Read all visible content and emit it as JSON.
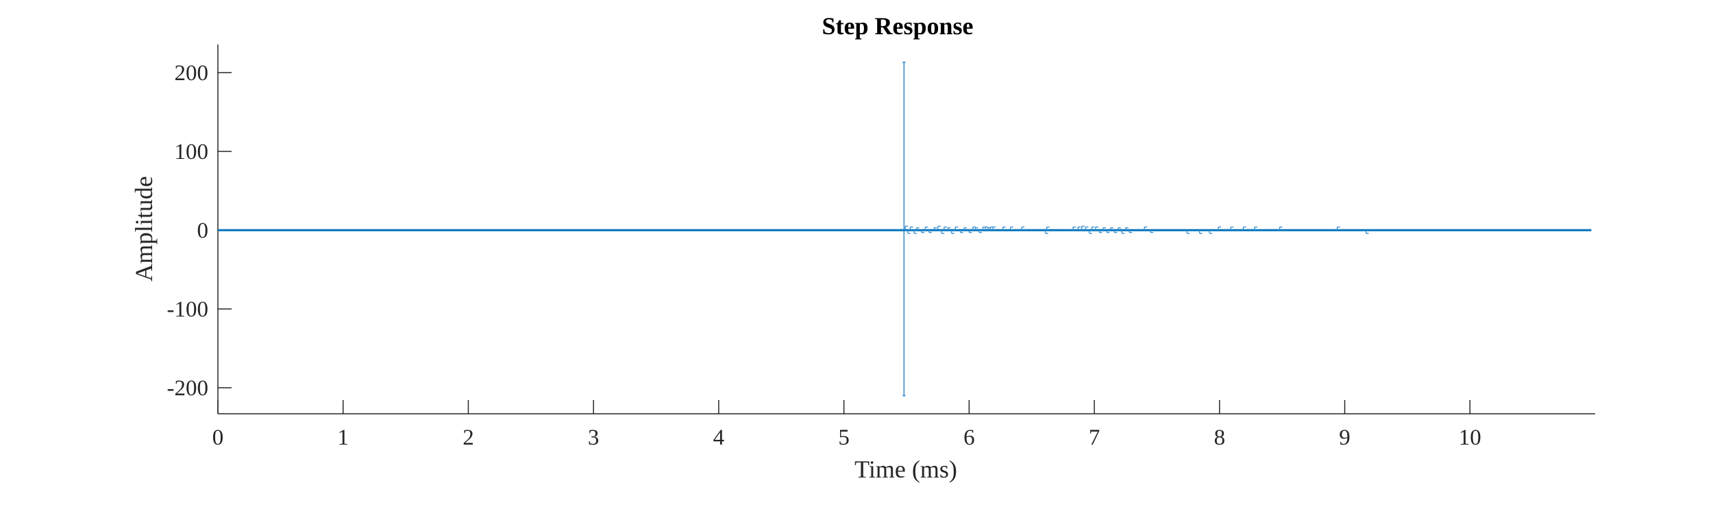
{
  "chart_data": {
    "type": "line",
    "title": "Step Response",
    "xlabel": "Time (ms)",
    "ylabel": "Amplitude",
    "xlim": [
      0,
      11
    ],
    "ylim": [
      -230,
      230
    ],
    "xticks": [
      0,
      1,
      2,
      3,
      4,
      5,
      6,
      7,
      8,
      9,
      10
    ],
    "xtick_labels": [
      "0",
      "1",
      "2",
      "3",
      "4",
      "5",
      "6",
      "7",
      "8",
      "9",
      "10"
    ],
    "yticks": [
      200,
      100,
      0,
      -100,
      -200
    ],
    "ytick_labels": [
      "200",
      "100",
      "0",
      "-100",
      "-200"
    ],
    "grid": false,
    "colors": {
      "zero_line": "#0072BD",
      "response": "#3a8fd0",
      "axis": "#262626"
    },
    "series": [
      {
        "x": [
          0,
          5.48
        ],
        "y": [
          0,
          0
        ]
      },
      {
        "x": [
          5.48,
          5.48,
          5.48,
          5.49,
          5.5
        ],
        "y": [
          0,
          213,
          -210,
          0,
          0
        ]
      },
      {
        "x": [
          5.49,
          5.51,
          5.53,
          5.56,
          5.58,
          5.62,
          5.65,
          5.68,
          5.72,
          5.75,
          5.78,
          5.8,
          5.83,
          5.86,
          5.89,
          5.93,
          5.96,
          6.0,
          6.03,
          6.05,
          6.08,
          6.11,
          6.13,
          6.15,
          6.17,
          6.19,
          6.27,
          6.33,
          6.42,
          6.61,
          6.62,
          6.83,
          6.87,
          6.9,
          6.93,
          6.96,
          6.98,
          7.01,
          7.04,
          7.07,
          7.1,
          7.13,
          7.16,
          7.19,
          7.22,
          7.25,
          7.28,
          7.4,
          7.45,
          7.74,
          7.84,
          7.92,
          7.99,
          8.09,
          8.19,
          8.28,
          8.48,
          8.94,
          9.17,
          10.97
        ],
        "y": [
          5,
          -4,
          4,
          -4,
          3,
          -3,
          4,
          -3,
          3,
          5,
          -4,
          4,
          3,
          -4,
          4,
          -3,
          3,
          -3,
          4,
          3,
          -3,
          4,
          4,
          3,
          4,
          4,
          4,
          4,
          4,
          -4,
          4,
          4,
          4,
          5,
          4,
          -4,
          4,
          4,
          -3,
          3,
          -3,
          3,
          -3,
          3,
          -4,
          3,
          -3,
          4,
          -3,
          -4,
          -4,
          -4,
          4,
          4,
          4,
          4,
          4,
          4,
          -4,
          0
        ]
      }
    ]
  }
}
